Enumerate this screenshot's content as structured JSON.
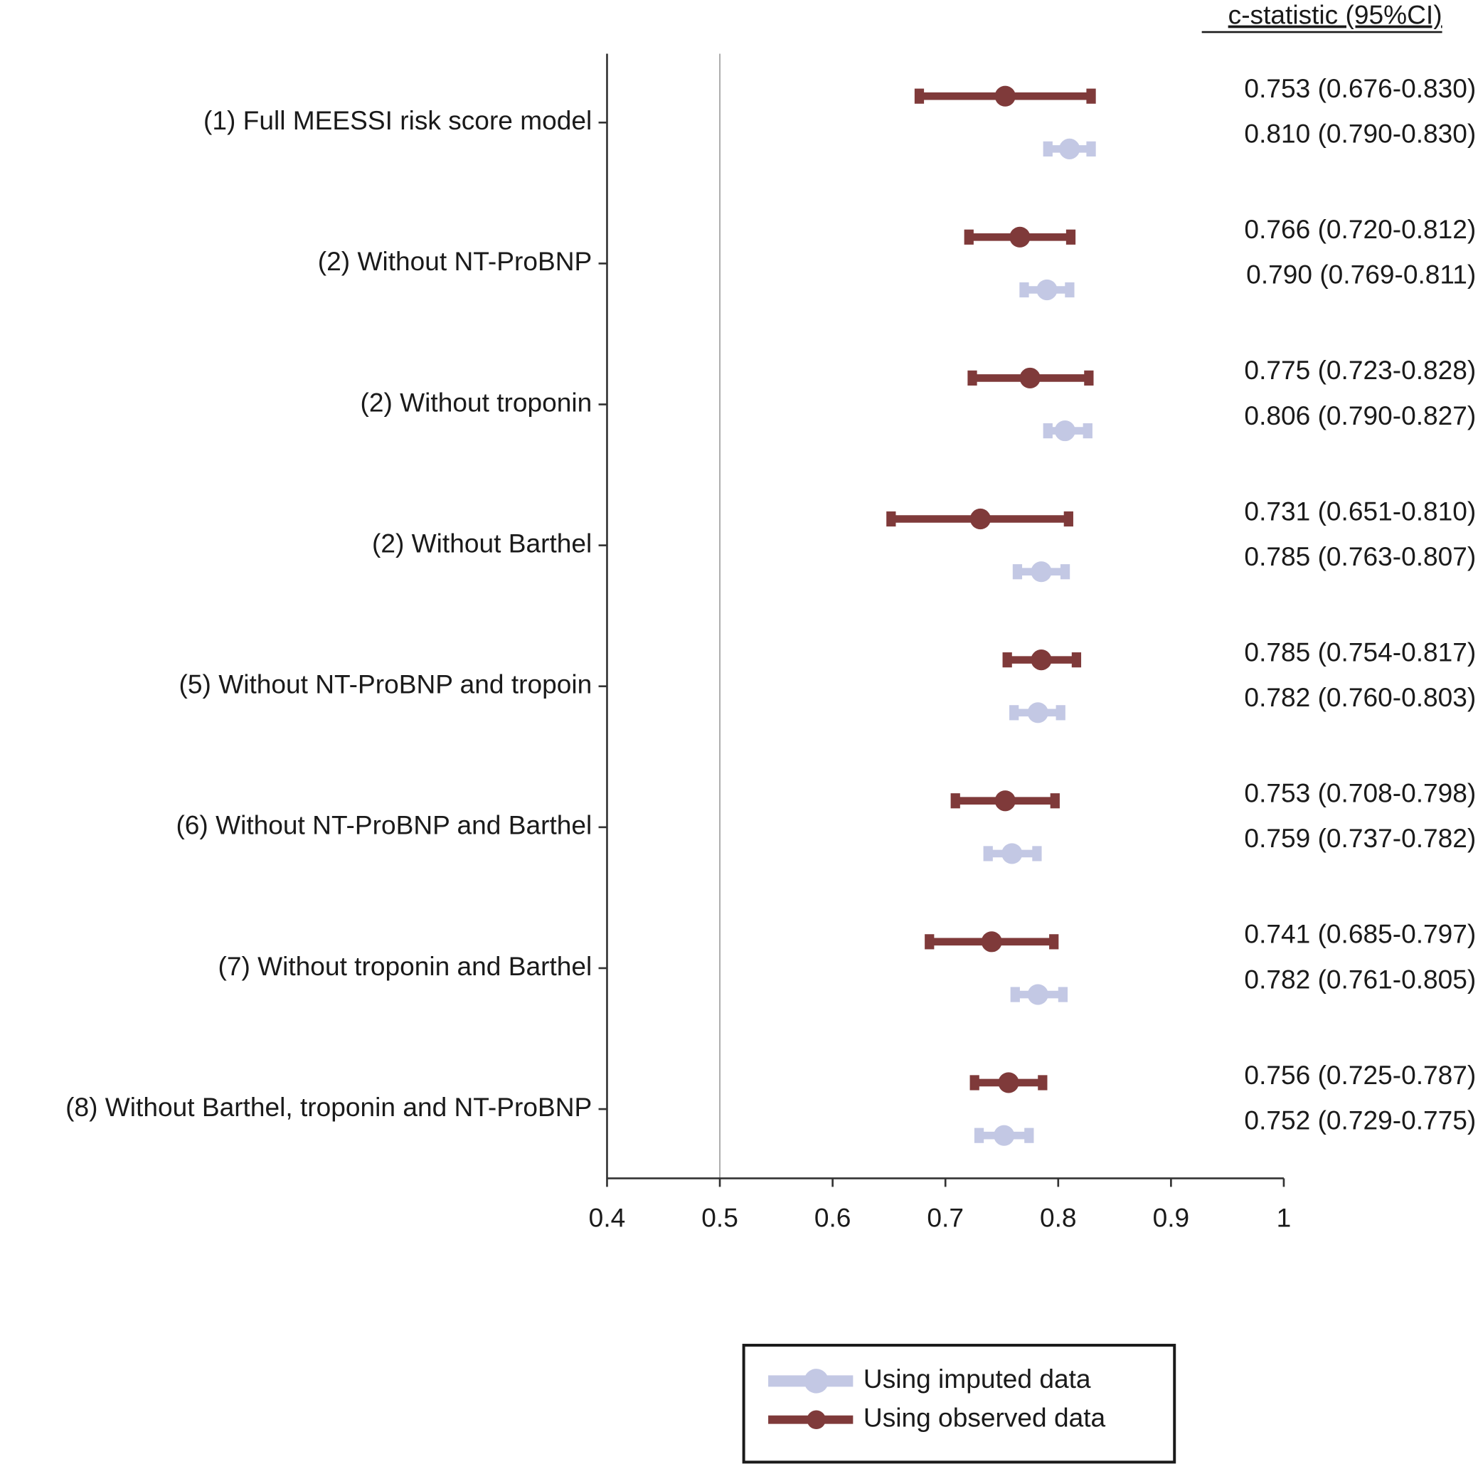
{
  "chart_data": {
    "type": "forest",
    "column_header": "c-statistic (95%CI)",
    "categories": [
      "(1) Full MEESSI risk score model",
      "(2) Without NT-ProBNP",
      "(2) Without troponin",
      "(2) Without Barthel",
      "(5) Without NT-ProBNP and tropoin",
      "(6) Without NT-ProBNP and Barthel",
      "(7) Without troponin and Barthel",
      "(8) Without Barthel, troponin and NT-ProBNP"
    ],
    "series": [
      {
        "name": "Using imputed data",
        "color": "#c3c8e4",
        "values": [
          0.81,
          0.79,
          0.806,
          0.785,
          0.782,
          0.759,
          0.782,
          0.752
        ],
        "lower": [
          0.79,
          0.769,
          0.79,
          0.763,
          0.76,
          0.737,
          0.761,
          0.729
        ],
        "upper": [
          0.83,
          0.811,
          0.827,
          0.807,
          0.803,
          0.782,
          0.805,
          0.775
        ],
        "value_labels": [
          "0.810 (0.790-0.830)",
          "0.790 (0.769-0.811)",
          "0.806 (0.790-0.827)",
          "0.785 (0.763-0.807)",
          "0.782 (0.760-0.803)",
          "0.759 (0.737-0.782)",
          "0.782 (0.761-0.805)",
          "0.752 (0.729-0.775)"
        ]
      },
      {
        "name": "Using observed data",
        "color": "#7f3a3a",
        "values": [
          0.753,
          0.766,
          0.775,
          0.731,
          0.785,
          0.753,
          0.741,
          0.756
        ],
        "lower": [
          0.676,
          0.72,
          0.723,
          0.651,
          0.754,
          0.708,
          0.685,
          0.725
        ],
        "upper": [
          0.83,
          0.812,
          0.828,
          0.81,
          0.817,
          0.798,
          0.797,
          0.787
        ],
        "value_labels": [
          "0.753 (0.676-0.830)",
          "0.766 (0.720-0.812)",
          "0.775 (0.723-0.828)",
          "0.731 (0.651-0.810)",
          "0.785 (0.754-0.817)",
          "0.753 (0.708-0.798)",
          "0.741 (0.685-0.797)",
          "0.756 (0.725-0.787)"
        ]
      }
    ],
    "xlim": [
      0.4,
      1
    ],
    "xticks": [
      0.4,
      0.5,
      0.6,
      0.7,
      0.8,
      0.9,
      1
    ],
    "reference_line": 0.5
  }
}
